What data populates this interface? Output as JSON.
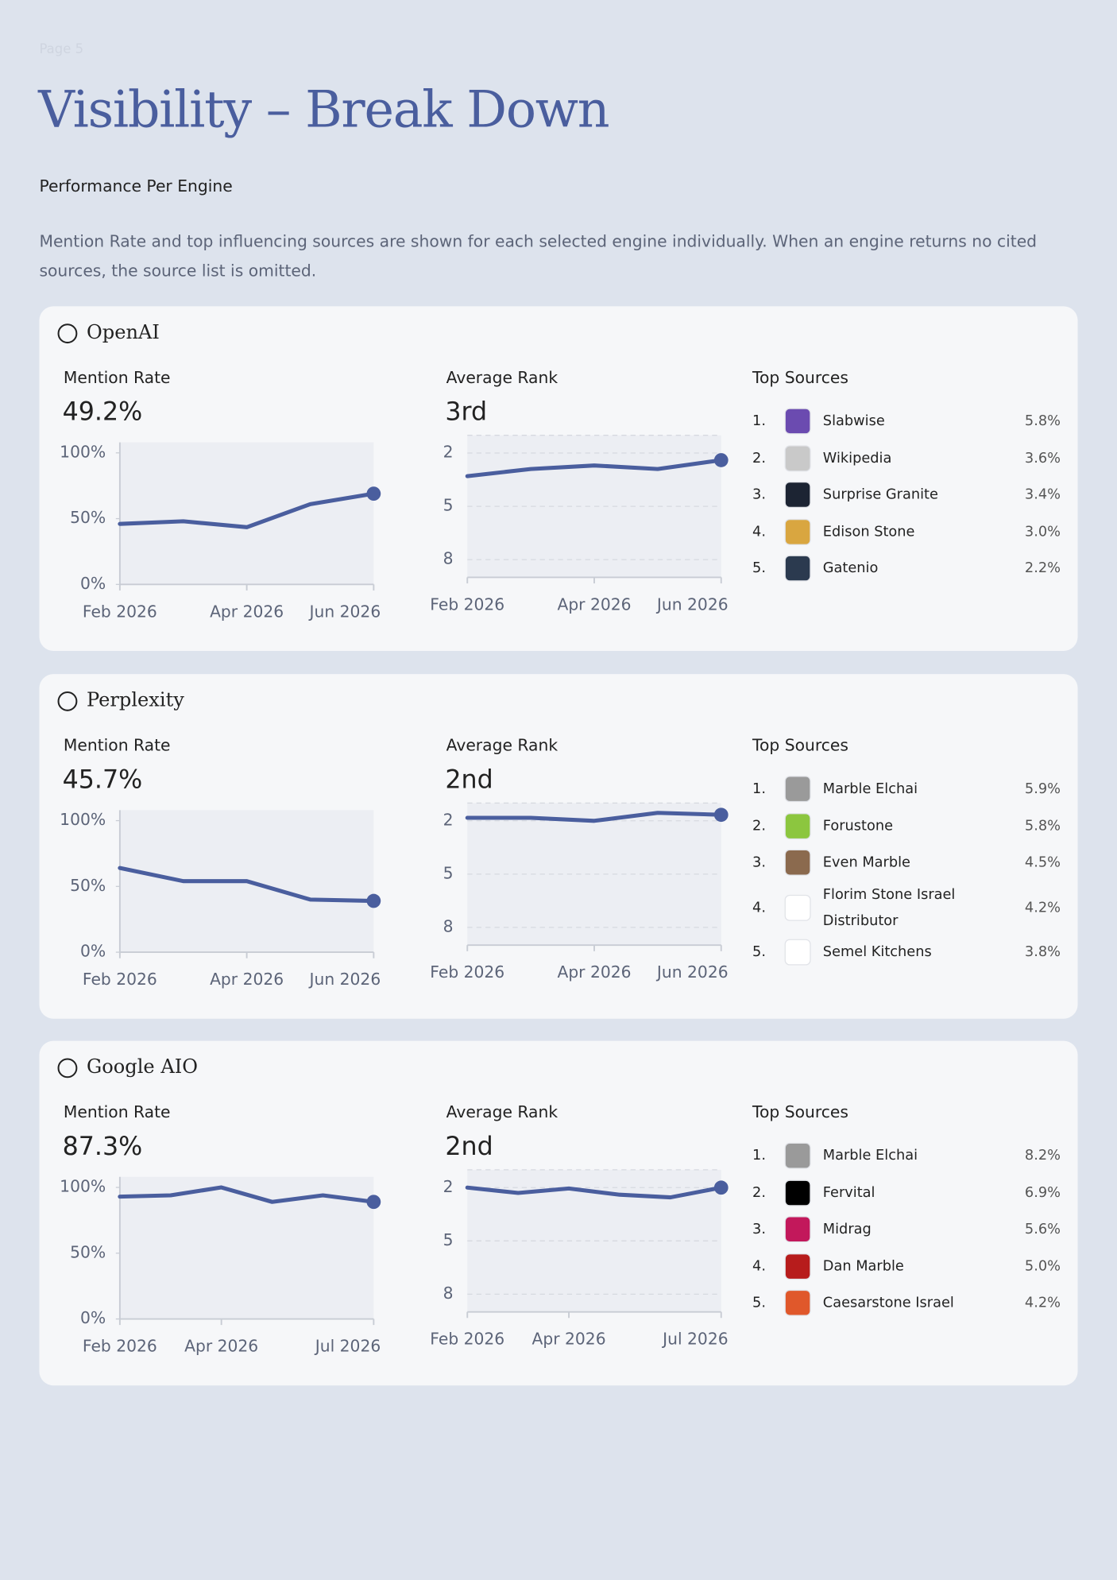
{
  "page_label": "Page 5",
  "title": "Visibility – Break Down",
  "subtitle": "Performance Per Engine",
  "description": "Mention Rate and top influencing sources are shown for each selected engine individually. When an engine returns no cited sources, the source list is omitted.",
  "engines": [
    {
      "name": "OpenAI",
      "mention_rate": {
        "label": "Mention Rate",
        "value": "49.2%",
        "chart": {
          "type": "line",
          "categories": [
            "Feb 2026",
            null,
            "Apr 2026",
            null,
            "Jun 2026"
          ],
          "values": [
            46,
            48,
            43.5,
            61,
            69
          ],
          "color": "#4a5e9e",
          "ylim": [
            0,
            108
          ],
          "yticks": [
            {
              "value": 0,
              "label": "0%"
            },
            {
              "value": 50,
              "label": "50%"
            },
            {
              "value": 100,
              "label": "100%"
            }
          ],
          "grid": false
        }
      },
      "average_rank": {
        "label": "Average Rank",
        "value": "3rd",
        "chart": {
          "type": "line",
          "categories": [
            "Feb 2026",
            null,
            "Apr 2026",
            null,
            "Jun 2026"
          ],
          "values": [
            3.3,
            2.9,
            2.7,
            2.9,
            2.4
          ],
          "color": "#4a5e9e",
          "ylim": [
            9,
            1
          ],
          "yticks": [
            2,
            5,
            8
          ],
          "grid": true
        }
      },
      "top_sources": {
        "label": "Top Sources",
        "items": [
          {
            "rank": "1.",
            "name": "Slabwise",
            "share": "5.8%",
            "icon_color": "#6b4bb0"
          },
          {
            "rank": "2.",
            "name": "Wikipedia",
            "share": "3.6%",
            "icon_color": "#c9c9c9"
          },
          {
            "rank": "3.",
            "name": "Surprise Granite",
            "share": "3.4%",
            "icon_color": "#1c2433"
          },
          {
            "rank": "4.",
            "name": "Edison Stone",
            "share": "3.0%",
            "icon_color": "#d9a640"
          },
          {
            "rank": "5.",
            "name": "Gatenio",
            "share": "2.2%",
            "icon_color": "#2b3a4f"
          }
        ]
      }
    },
    {
      "name": "Perplexity",
      "mention_rate": {
        "label": "Mention Rate",
        "value": "45.7%",
        "chart": {
          "type": "line",
          "categories": [
            "Feb 2026",
            null,
            "Apr 2026",
            null,
            "Jun 2026"
          ],
          "values": [
            64,
            54,
            54,
            40,
            39
          ],
          "color": "#4a5e9e",
          "ylim": [
            0,
            108
          ],
          "yticks": [
            {
              "value": 0,
              "label": "0%"
            },
            {
              "value": 50,
              "label": "50%"
            },
            {
              "value": 100,
              "label": "100%"
            }
          ],
          "grid": false
        }
      },
      "average_rank": {
        "label": "Average Rank",
        "value": "2nd",
        "chart": {
          "type": "line",
          "categories": [
            "Feb 2026",
            null,
            "Apr 2026",
            null,
            "Jun 2026"
          ],
          "values": [
            1.83,
            1.83,
            2,
            1.55,
            1.66
          ],
          "color": "#4a5e9e",
          "ylim": [
            9,
            1
          ],
          "yticks": [
            2,
            5,
            8
          ],
          "grid": true
        }
      },
      "top_sources": {
        "label": "Top Sources",
        "items": [
          {
            "rank": "1.",
            "name": "Marble Elchai",
            "share": "5.9%",
            "icon_color": "#9a9a9a"
          },
          {
            "rank": "2.",
            "name": "Forustone",
            "share": "5.8%",
            "icon_color": "#8cc63f"
          },
          {
            "rank": "3.",
            "name": "Even Marble",
            "share": "4.5%",
            "icon_color": "#8b6a4e"
          },
          {
            "rank": "4.",
            "name": "Florim Stone Israel Distributor",
            "share": "4.2%",
            "icon_color": "#ffffff"
          },
          {
            "rank": "5.",
            "name": "Semel Kitchens",
            "share": "3.8%",
            "icon_color": "#ffffff"
          }
        ]
      }
    },
    {
      "name": "Google AIO",
      "mention_rate": {
        "label": "Mention Rate",
        "value": "87.3%",
        "chart": {
          "type": "line",
          "categories": [
            "Feb 2026",
            null,
            "Apr 2026",
            null,
            null,
            "Jul 2026"
          ],
          "values": [
            93,
            94,
            100,
            89,
            94,
            89
          ],
          "color": "#4a5e9e",
          "ylim": [
            0,
            108
          ],
          "yticks": [
            {
              "value": 0,
              "label": "0%"
            },
            {
              "value": 50,
              "label": "50%"
            },
            {
              "value": 100,
              "label": "100%"
            }
          ],
          "grid": false
        }
      },
      "average_rank": {
        "label": "Average Rank",
        "value": "2nd",
        "chart": {
          "type": "line",
          "categories": [
            "Feb 2026",
            null,
            "Apr 2026",
            null,
            null,
            "Jul 2026"
          ],
          "values": [
            2.0,
            2.3,
            2.05,
            2.4,
            2.55,
            2.0
          ],
          "color": "#4a5e9e",
          "ylim": [
            9,
            1
          ],
          "yticks": [
            2,
            5,
            8
          ],
          "grid": true
        }
      },
      "top_sources": {
        "label": "Top Sources",
        "items": [
          {
            "rank": "1.",
            "name": "Marble Elchai",
            "share": "8.2%",
            "icon_color": "#9a9a9a"
          },
          {
            "rank": "2.",
            "name": "Fervital",
            "share": "6.9%",
            "icon_color": "#000000"
          },
          {
            "rank": "3.",
            "name": "Midrag",
            "share": "5.6%",
            "icon_color": "#c2185b"
          },
          {
            "rank": "4.",
            "name": "Dan Marble",
            "share": "5.0%",
            "icon_color": "#b71c1c"
          },
          {
            "rank": "5.",
            "name": "Caesarstone Israel",
            "share": "4.2%",
            "icon_color": "#e0582b"
          }
        ]
      }
    }
  ]
}
